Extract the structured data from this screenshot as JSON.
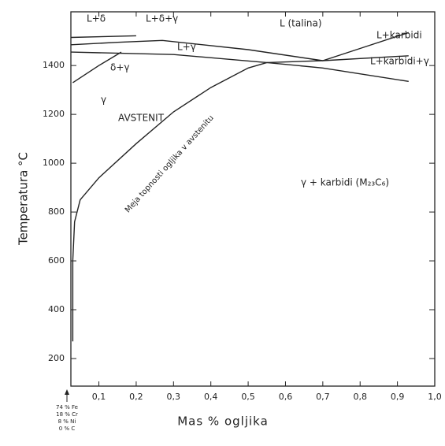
{
  "chart_data": {
    "type": "line",
    "color": "#222",
    "y_label": "Temperatura °C",
    "x_label": "Mas % ogljika",
    "xlim": [
      0.025,
      1.0
    ],
    "ylim": [
      87,
      1620
    ],
    "xticks": [
      {
        "value": 0.1,
        "label": "0,1"
      },
      {
        "value": 0.2,
        "label": "0,2"
      },
      {
        "value": 0.3,
        "label": "0,3"
      },
      {
        "value": 0.4,
        "label": "0,4"
      },
      {
        "value": 0.5,
        "label": "0,5"
      },
      {
        "value": 0.6,
        "label": "0,6"
      },
      {
        "value": 0.7,
        "label": "0,7"
      },
      {
        "value": 0.8,
        "label": "0,8"
      },
      {
        "value": 0.9,
        "label": "0,9"
      },
      {
        "value": 1.0,
        "label": "1,0"
      }
    ],
    "yticks": [
      200,
      400,
      600,
      800,
      1000,
      1200,
      1400
    ],
    "origin_composition": [
      "74 % Fe",
      "18 % Cr",
      "8 % Ni",
      "0 % C"
    ],
    "annotations": [
      "L+δ",
      "L+δ+γ",
      "L (talina)",
      "L+karbidi",
      "L+γ",
      "L+karbidi+γ",
      "δ+γ",
      "γ",
      "AVSTENIT",
      "γ + karbidi (M₂₃C₆)",
      "Meja topnosti ogljika v avstenitu"
    ],
    "series": [
      {
        "x": [
          0.03,
          0.03,
          0.035,
          0.05,
          0.1,
          0.2,
          0.3,
          0.4,
          0.5,
          0.55
        ],
        "values": [
          270,
          600,
          760,
          850,
          940,
          1080,
          1210,
          1310,
          1390,
          1412
        ]
      },
      {
        "x": [
          0.025,
          0.2
        ],
        "values": [
          1515,
          1522
        ]
      },
      {
        "x": [
          0.025,
          0.15,
          0.27,
          0.5,
          0.7,
          0.8,
          0.93
        ],
        "values": [
          1485,
          1495,
          1503,
          1465,
          1420,
          1470,
          1535
        ]
      },
      {
        "x": [
          0.025,
          0.3,
          0.55,
          0.7,
          0.93
        ],
        "values": [
          1455,
          1445,
          1412,
          1420,
          1440
        ]
      },
      {
        "x": [
          0.55,
          0.7,
          0.93
        ],
        "values": [
          1412,
          1390,
          1335
        ]
      },
      {
        "x": [
          0.03,
          0.1,
          0.16
        ],
        "values": [
          1330,
          1400,
          1455
        ]
      }
    ]
  }
}
